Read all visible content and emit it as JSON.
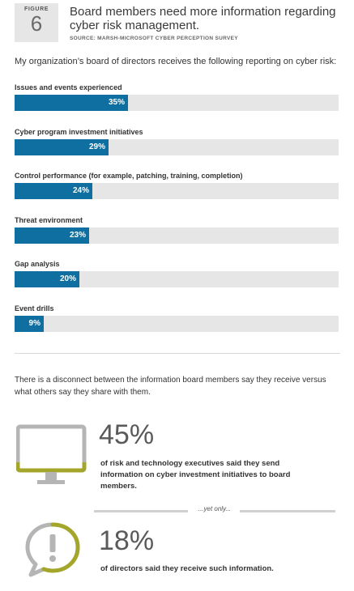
{
  "header": {
    "figure_label": "FIGURE",
    "figure_number": "6",
    "title": "Board members need more  information regarding cyber risk management.",
    "source": "SOURCE: MARSH-MICROSOFT CYBER PERCEPTION SURVEY"
  },
  "intro": "My organization’s board of directors receives the following reporting on cyber risk:",
  "chart_data": {
    "type": "bar",
    "orientation": "horizontal",
    "categories": [
      "Issues and events experienced",
      "Cyber program investment initiatives",
      "Control performance (for example, patching, training, completion)",
      "Threat environment",
      "Gap analysis",
      "Event drills"
    ],
    "values": [
      35,
      29,
      24,
      23,
      20,
      9
    ],
    "value_labels": [
      "35%",
      "29%",
      "24%",
      "23%",
      "20%",
      "9%"
    ],
    "xlim": [
      0,
      100
    ],
    "colors": {
      "bar": "#0e6fa0",
      "track": "#e6e6e6"
    }
  },
  "note": "There is a disconnect between the information board members say they receive versus what others say they share with them.",
  "stats": {
    "first": {
      "value": "45%",
      "text": "of risk and technology executives said they send information on cyber investment initiatives to board members.",
      "icon": "monitor-icon"
    },
    "separator": "...yet only...",
    "second": {
      "value": "18%",
      "text": "of directors said they receive such information.",
      "icon": "alert-speech-bubble-icon"
    }
  },
  "colors": {
    "accent_green": "#a3a62a",
    "icon_gray": "#b5b5b5"
  }
}
